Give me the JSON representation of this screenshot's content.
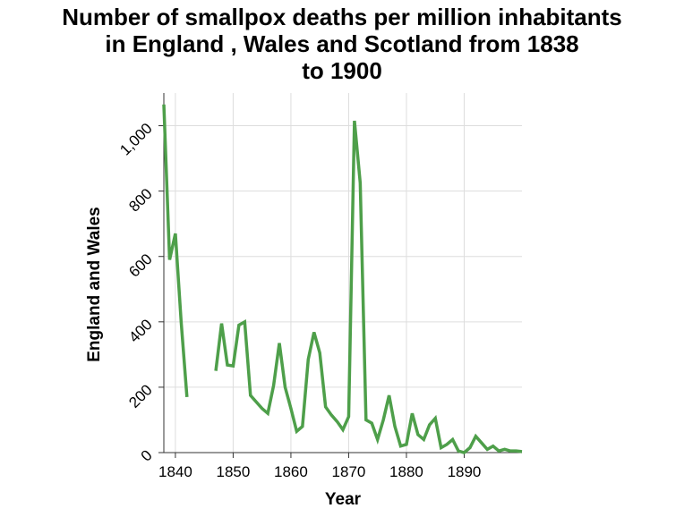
{
  "chart_data": {
    "type": "line",
    "title_lines": [
      "Number of smallpox deaths per million inhabitants",
      "in England , Wales and Scotland from 1838",
      "to 1900"
    ],
    "xlabel": "Year",
    "ylabel": "England and Wales",
    "xlim": [
      1838,
      1900
    ],
    "ylim": [
      0,
      1100
    ],
    "x_ticks": [
      1840,
      1850,
      1860,
      1870,
      1880,
      1890
    ],
    "x_tick_labels": [
      "1840",
      "1850",
      "1860",
      "1870",
      "1880",
      "1890"
    ],
    "y_ticks": [
      0,
      200,
      400,
      600,
      800,
      1000
    ],
    "y_tick_labels": [
      "0",
      "200",
      "400",
      "600",
      "800",
      "1,000"
    ],
    "grid": true,
    "color": "#4e9f4a",
    "series": [
      {
        "segments": [
          {
            "x": [
              1838,
              1839,
              1840,
              1841,
              1842
            ],
            "y": [
              1065,
              590,
              670,
              400,
              170
            ]
          },
          {
            "x": [
              1847,
              1848,
              1849,
              1850,
              1851,
              1852,
              1853,
              1854,
              1855,
              1856,
              1857,
              1858,
              1859,
              1860,
              1861,
              1862,
              1863,
              1864,
              1865,
              1866,
              1867,
              1868,
              1869,
              1870,
              1871,
              1872,
              1873,
              1874,
              1875,
              1876,
              1877,
              1878,
              1879,
              1880,
              1881,
              1882,
              1883,
              1884,
              1885,
              1886,
              1887,
              1888,
              1889,
              1890,
              1891,
              1892,
              1893,
              1894,
              1895,
              1896,
              1897,
              1898,
              1899,
              1900
            ],
            "y": [
              250,
              395,
              268,
              265,
              390,
              400,
              175,
              155,
              135,
              120,
              205,
              335,
              200,
              135,
              65,
              80,
              285,
              368,
              305,
              140,
              115,
              95,
              70,
              110,
              1015,
              825,
              100,
              90,
              40,
              100,
              175,
              80,
              20,
              25,
              120,
              55,
              40,
              85,
              105,
              15,
              25,
              40,
              5,
              0,
              15,
              50,
              30,
              10,
              20,
              5,
              10,
              5,
              5,
              3
            ]
          }
        ]
      }
    ]
  }
}
